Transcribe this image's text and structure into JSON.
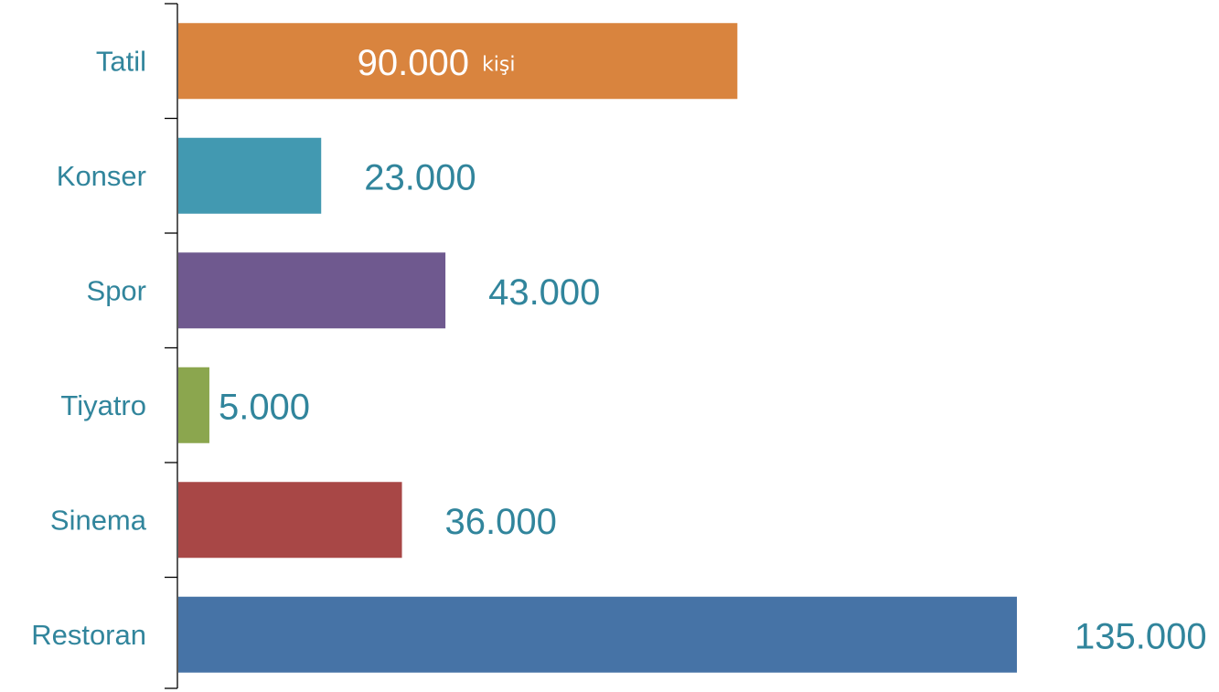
{
  "chart_data": {
    "type": "bar",
    "orientation": "horizontal",
    "categories": [
      "Tatil",
      "Konser",
      "Spor",
      "Tiyatro",
      "Sinema",
      "Restoran"
    ],
    "values": [
      90000,
      23000,
      43000,
      5000,
      36000,
      135000
    ],
    "data_labels": [
      "90.000",
      "23.000",
      "43.000",
      "5.000",
      "36.000",
      "135.000"
    ],
    "unit_label": "kişi",
    "colors": [
      "#d9843e",
      "#4299b1",
      "#6f598f",
      "#8ba64e",
      "#a84746",
      "#4673a6"
    ],
    "label_color": "#31859c",
    "xlim": [
      0,
      135000
    ],
    "grid": false,
    "legend": "none",
    "title": "",
    "xlabel": "",
    "ylabel": ""
  }
}
